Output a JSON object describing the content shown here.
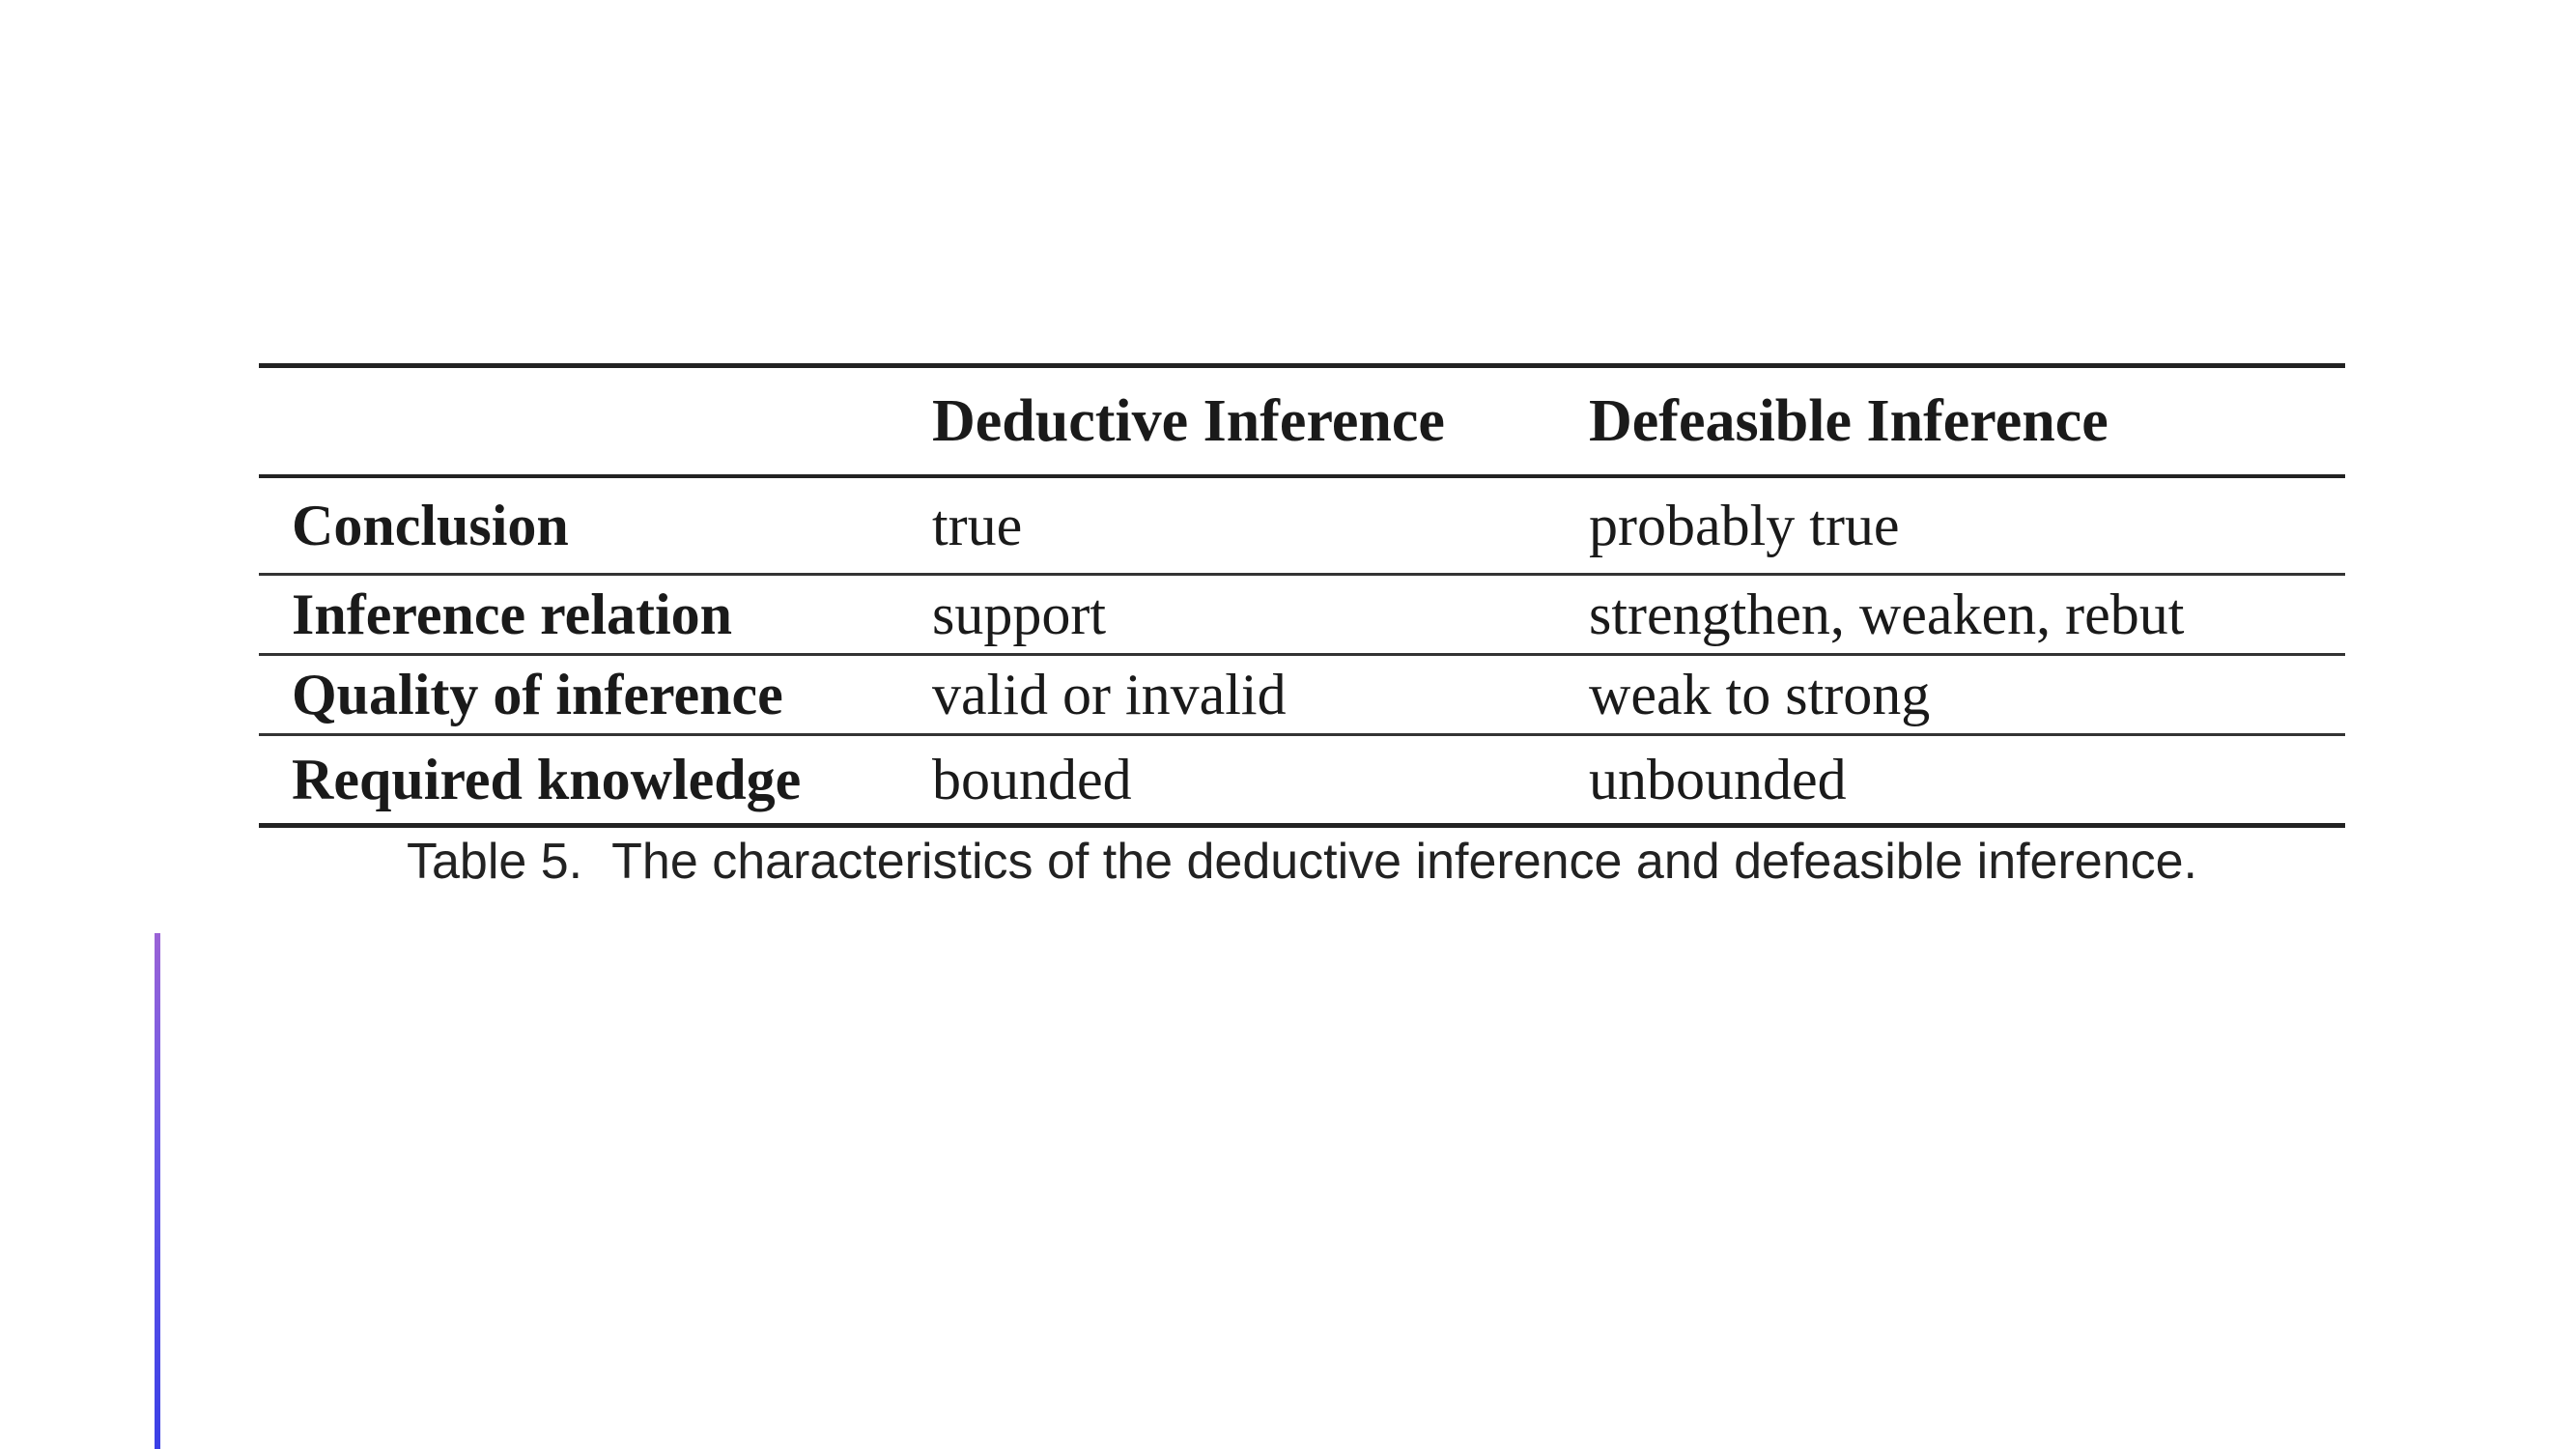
{
  "table": {
    "headers": [
      "",
      "Deductive Inference",
      "Defeasible Inference"
    ],
    "rows": [
      [
        "Conclusion",
        "true",
        "probably true"
      ],
      [
        "Inference relation",
        "support",
        "strengthen, weaken, rebut"
      ],
      [
        "Quality of inference",
        "valid or invalid",
        "weak to strong"
      ],
      [
        "Required knowledge",
        "bounded",
        "unbounded"
      ]
    ]
  },
  "caption": {
    "label": "Table 5.",
    "text": "The characteristics of the deductive inference and defeasible inference."
  },
  "colors": {
    "rule": "#222222",
    "accent_bar_top": "#9a62d6",
    "accent_bar_bottom": "#3a3fe6"
  }
}
